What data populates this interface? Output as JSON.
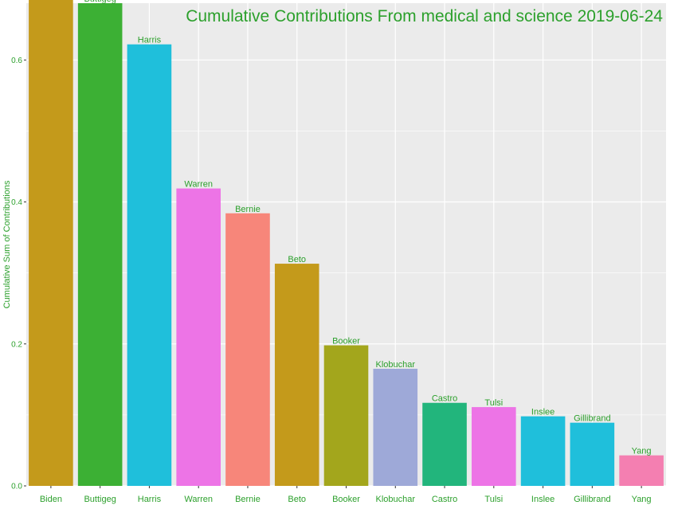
{
  "chart_data": {
    "type": "bar",
    "title": "Cumulative Contributions From  medical and science  2019-06-24",
    "xlabel": "",
    "ylabel": "Cumulative Sum of Contributions",
    "ylim": [
      0,
      0.68
    ],
    "yticks": [
      0.0,
      0.2,
      0.4,
      0.6
    ],
    "ytick_labels": [
      "0.0",
      "0.2",
      "0.4",
      "0.6"
    ],
    "grid": true,
    "legend": "none",
    "text_color": "#2ca02c",
    "panel_color": "#ebebeb",
    "grid_color": "#ffffff",
    "categories": [
      "Biden",
      "Buttigeg",
      "Harris",
      "Warren",
      "Bernie",
      "Beto",
      "Booker",
      "Klobuchar",
      "Castro",
      "Tulsi",
      "Inslee",
      "Gillibrand",
      "Yang"
    ],
    "values": [
      0.685,
      0.68,
      0.622,
      0.419,
      0.384,
      0.313,
      0.198,
      0.165,
      0.117,
      0.111,
      0.098,
      0.089,
      0.043
    ],
    "data_labels": [
      "Biden",
      "Buttigeg",
      "Harris",
      "Warren",
      "Bernie",
      "Beto",
      "Booker",
      "Klobuchar",
      "Castro",
      "Tulsi",
      "Inslee",
      "Gillibrand",
      "Yang"
    ],
    "colors": [
      "#c49a1b",
      "#3cb034",
      "#1fbfdb",
      "#ed74e6",
      "#f7867a",
      "#c49a1b",
      "#a3a61c",
      "#9ea9d8",
      "#22b57c",
      "#ed74e6",
      "#1fbfdb",
      "#1fbfdb",
      "#f47fb1"
    ]
  }
}
